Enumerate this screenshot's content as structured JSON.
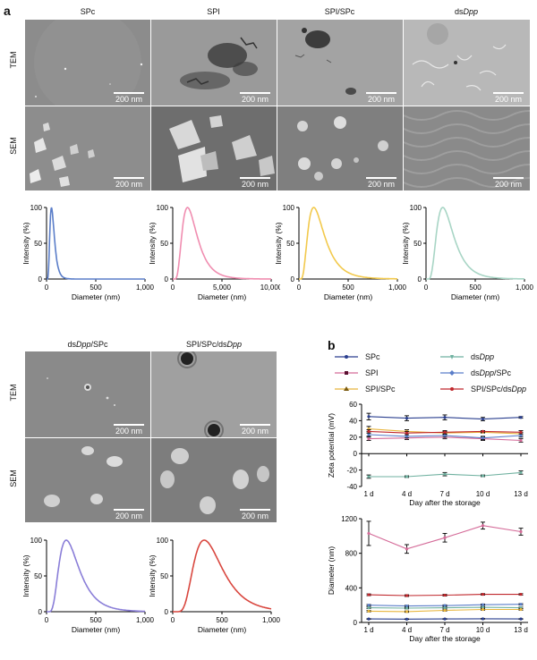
{
  "panel_a": {
    "label": "a",
    "row_labels": {
      "tem": "TEM",
      "sem": "SEM"
    },
    "scale": "200 nm",
    "columns_top": [
      {
        "title": "SPc",
        "title_plain": "SPc",
        "title_italic": ""
      },
      {
        "title": "SPI",
        "title_plain": "SPI",
        "title_italic": ""
      },
      {
        "title": "SPI/SPc",
        "title_plain": "SPI/SPc",
        "title_italic": ""
      },
      {
        "title": "dsDpp",
        "title_plain": "ds",
        "title_italic": "Dpp"
      }
    ],
    "columns_bottom": [
      {
        "title": "dsDpp/SPc",
        "title_plain_pre": "ds",
        "title_italic": "Dpp",
        "title_plain_post": "/SPc"
      },
      {
        "title": "SPI/SPc/dsDpp",
        "title_plain_pre": "SPI/SPc/ds",
        "title_italic": "Dpp",
        "title_plain_post": ""
      }
    ]
  },
  "panel_b": {
    "label": "b",
    "legend": [
      {
        "name": "SPc",
        "color": "#2a3f8f",
        "marker": "dot"
      },
      {
        "name": "dsDpp",
        "name_plain": "ds",
        "name_italic": "Dpp",
        "color": "#6fb1a0",
        "marker": "tri"
      },
      {
        "name": "SPI",
        "color": "#d46a98",
        "marker": "sq"
      },
      {
        "name": "dsDpp/SPc",
        "name_plain": "ds",
        "name_italic": "Dpp",
        "name_post": "/SPc",
        "color": "#5b7ec9",
        "marker": "dia"
      },
      {
        "name": "SPI/SPc",
        "color": "#e8b53c",
        "marker": "tri"
      },
      {
        "name": "SPI/SPc/dsDpp",
        "name_plain": "SPI/SPc/ds",
        "name_italic": "Dpp",
        "color": "#c0282d",
        "marker": "dot"
      }
    ]
  },
  "chart_data": [
    {
      "type": "line",
      "id": "dls-spc",
      "xlabel": "Diameter (nm)",
      "ylabel": "Intensity (%)",
      "xlim": [
        0,
        1000
      ],
      "ylim": [
        0,
        100
      ],
      "xticks": [
        "0",
        "500",
        "1,000"
      ],
      "yticks": [
        "0",
        "50",
        "100"
      ],
      "series": [
        {
          "name": "SPc",
          "color": "#5b7ec9",
          "peak": 50,
          "shape": 0.45
        }
      ]
    },
    {
      "type": "line",
      "id": "dls-spi",
      "xlabel": "Diameter (nm)",
      "ylabel": "Intensity (%)",
      "xlim": [
        0,
        10000
      ],
      "ylim": [
        0,
        100
      ],
      "xticks": [
        "0",
        "5,000",
        "10,000"
      ],
      "yticks": [
        "0",
        "50",
        "100"
      ],
      "series": [
        {
          "name": "SPI",
          "color": "#f08db0",
          "peak": 1500,
          "shape": 0.5
        }
      ]
    },
    {
      "type": "line",
      "id": "dls-spispc",
      "xlabel": "Diameter (nm)",
      "ylabel": "Intensity (%)",
      "xlim": [
        0,
        1000
      ],
      "ylim": [
        0,
        100
      ],
      "xticks": [
        "0",
        "500",
        "1,000"
      ],
      "yticks": [
        "0",
        "50",
        "100"
      ],
      "series": [
        {
          "name": "SPI/SPc",
          "color": "#f2c94c",
          "peak": 150,
          "shape": 0.55
        }
      ]
    },
    {
      "type": "line",
      "id": "dls-dsdpp",
      "xlabel": "Diameter (nm)",
      "ylabel": "Intensity (%)",
      "xlim": [
        0,
        1000
      ],
      "ylim": [
        0,
        100
      ],
      "xticks": [
        "0",
        "500",
        "1,000"
      ],
      "yticks": [
        "0",
        "50",
        "100"
      ],
      "series": [
        {
          "name": "dsDpp",
          "color": "#a8d5c5",
          "peak": 170,
          "shape": 0.5
        }
      ]
    },
    {
      "type": "line",
      "id": "dls-dsdppspc",
      "xlabel": "Diameter (nm)",
      "ylabel": "Intensity (%)",
      "xlim": [
        0,
        1000
      ],
      "ylim": [
        0,
        100
      ],
      "xticks": [
        "0",
        "500",
        "1,000"
      ],
      "yticks": [
        "0",
        "50",
        "100"
      ],
      "series": [
        {
          "name": "dsDpp/SPc",
          "color": "#8a7ed8",
          "peak": 200,
          "shape": 0.5
        }
      ]
    },
    {
      "type": "line",
      "id": "dls-all",
      "xlabel": "Diameter (nm)",
      "ylabel": "Intensity (%)",
      "xlim": [
        0,
        1000
      ],
      "ylim": [
        0,
        100
      ],
      "xticks": [
        "0",
        "500",
        "1,000"
      ],
      "yticks": [
        "0",
        "50",
        "100"
      ],
      "series": [
        {
          "name": "SPI/SPc/dsDpp",
          "color": "#d9473f",
          "peak": 320,
          "shape": 0.45
        }
      ]
    },
    {
      "type": "line",
      "id": "zeta",
      "xlabel": "Day after the storage",
      "ylabel": "Zeta potential (mV)",
      "categories": [
        "1 d",
        "4 d",
        "7 d",
        "10 d",
        "13 d"
      ],
      "ylim": [
        -40,
        60
      ],
      "yticks": [
        "-40",
        "-20",
        "0",
        "20",
        "40",
        "60"
      ],
      "series": [
        {
          "name": "SPc",
          "color": "#2a3f8f",
          "values": [
            45,
            43,
            44,
            42,
            44
          ],
          "err": [
            4,
            3,
            3,
            2,
            1
          ]
        },
        {
          "name": "SPI",
          "color": "#d46a98",
          "values": [
            18,
            19,
            20,
            18,
            16
          ],
          "err": [
            2,
            2,
            2,
            2,
            2
          ]
        },
        {
          "name": "SPI/SPc",
          "color": "#e8b53c",
          "values": [
            30,
            27,
            25,
            26,
            24
          ],
          "err": [
            3,
            2,
            2,
            1,
            2
          ]
        },
        {
          "name": "dsDpp/SPc",
          "color": "#5b7ec9",
          "values": [
            23,
            21,
            22,
            19,
            22
          ],
          "err": [
            2,
            2,
            2,
            2,
            2
          ]
        },
        {
          "name": "SPI/SPc/dsDpp",
          "color": "#c0282d",
          "values": [
            27,
            25,
            26,
            27,
            26
          ],
          "err": [
            2,
            2,
            2,
            1,
            2
          ]
        },
        {
          "name": "dsDpp",
          "color": "#6fb1a0",
          "values": [
            -28,
            -28,
            -25,
            -27,
            -23
          ],
          "err": [
            2,
            1,
            2,
            1,
            2
          ]
        }
      ]
    },
    {
      "type": "line",
      "id": "diameter",
      "xlabel": "Day after the storage",
      "ylabel": "Diameter (nm)",
      "categories": [
        "1 d",
        "4 d",
        "7 d",
        "10 d",
        "13 d"
      ],
      "ylim": [
        0,
        1200
      ],
      "yticks": [
        "0",
        "400",
        "800",
        "1200"
      ],
      "series": [
        {
          "name": "SPI",
          "color": "#d46a98",
          "values": [
            1030,
            850,
            980,
            1120,
            1050
          ],
          "err": [
            140,
            50,
            50,
            40,
            40
          ]
        },
        {
          "name": "SPI/SPc/dsDpp",
          "color": "#c0282d",
          "values": [
            320,
            310,
            315,
            325,
            325
          ],
          "err": [
            10,
            10,
            10,
            8,
            8
          ]
        },
        {
          "name": "dsDpp/SPc",
          "color": "#5b7ec9",
          "values": [
            200,
            190,
            195,
            205,
            210
          ],
          "err": [
            8,
            8,
            8,
            8,
            8
          ]
        },
        {
          "name": "dsDpp",
          "color": "#6fb1a0",
          "values": [
            170,
            165,
            170,
            175,
            170
          ],
          "err": [
            8,
            8,
            8,
            8,
            8
          ]
        },
        {
          "name": "SPI/SPc",
          "color": "#e8b53c",
          "values": [
            130,
            125,
            140,
            150,
            150
          ],
          "err": [
            8,
            8,
            8,
            8,
            8
          ]
        },
        {
          "name": "SPc",
          "color": "#2a3f8f",
          "values": [
            40,
            38,
            40,
            42,
            40
          ],
          "err": [
            3,
            3,
            3,
            3,
            3
          ]
        }
      ]
    }
  ]
}
